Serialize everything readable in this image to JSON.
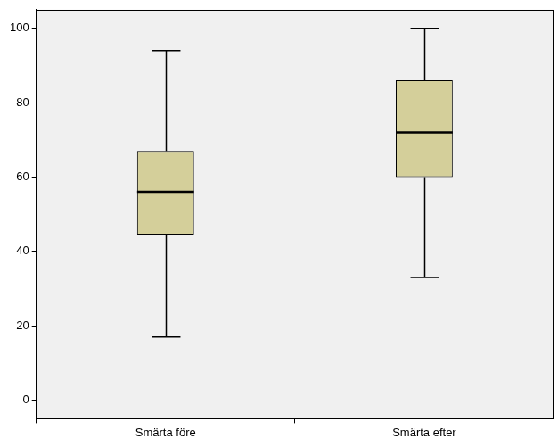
{
  "chart_data": {
    "type": "boxplot",
    "categories": [
      "Smärta före",
      "Smärta efter"
    ],
    "boxes": [
      {
        "min": 17,
        "q1": 44.5,
        "median": 56,
        "q3": 67,
        "max": 94
      },
      {
        "min": 33,
        "q1": 60,
        "median": 72,
        "q3": 86,
        "max": 100
      }
    ],
    "color": "#d4cf9a",
    "ylim": [
      -5,
      105
    ],
    "yticks": [
      0,
      20,
      40,
      60,
      80,
      100
    ],
    "grid": false
  }
}
